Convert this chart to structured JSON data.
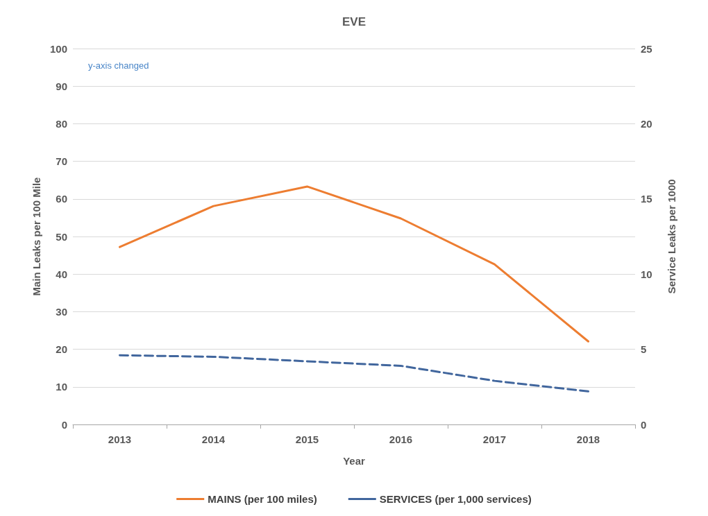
{
  "chart_data": {
    "type": "line",
    "title": "EVE",
    "xlabel": "Year",
    "ylabel": "Main Leaks per 100 Mile",
    "y2label": "Service Leaks per 1000",
    "categories": [
      "2013",
      "2014",
      "2015",
      "2016",
      "2017",
      "2018"
    ],
    "series": [
      {
        "name": "MAINS (per 100 miles)",
        "color": "#ed7d31",
        "line_style": "solid",
        "values": [
          47.2,
          58.1,
          63.3,
          54.8,
          42.6,
          22.1
        ]
      },
      {
        "name": "SERVICES (per 1,000 services)",
        "color": "#41669d",
        "line_style": "dashed",
        "axis": "y2",
        "values": [
          4.6,
          4.5,
          4.2,
          3.9,
          2.9,
          2.2
        ]
      }
    ],
    "ylim": [
      0,
      100
    ],
    "yticks": [
      0,
      10,
      20,
      30,
      40,
      50,
      60,
      70,
      80,
      90,
      100
    ],
    "y2lim": [
      0,
      25
    ],
    "y2ticks": [
      0,
      5,
      10,
      15,
      20,
      25
    ],
    "annotations": [
      "y-axis changed"
    ],
    "grid": "y",
    "legend": "bottom",
    "marker": "none"
  }
}
